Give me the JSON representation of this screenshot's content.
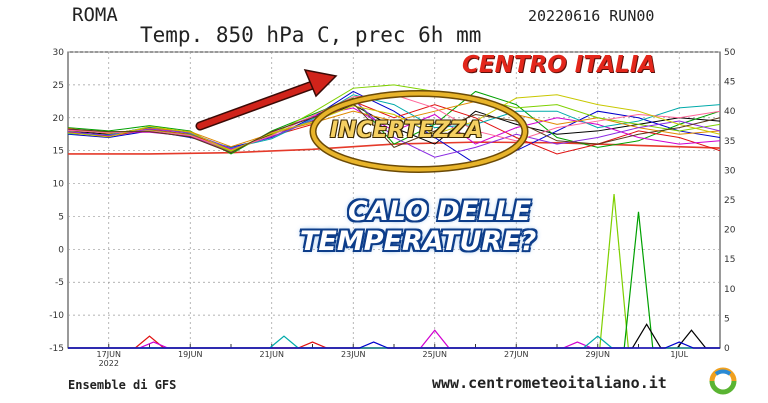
{
  "header": {
    "city": "ROMA",
    "run_code": "20220616 RUN00",
    "subtitle": "Temp. 850 hPa C, prec 6h mm"
  },
  "overlay": {
    "region": "CENTRO ITALIA",
    "uncertainty": "INCERTEZZA",
    "question_line1": "CALO DELLE",
    "question_line2": "TEMPERATURE?"
  },
  "footer": {
    "source": "Ensemble di GFS",
    "website": "www.centrometeoitaliano.it",
    "logo": "MC"
  },
  "colors": {
    "red_accent": "#e3261b",
    "arrow": "#d0231a",
    "ellipse": "#d9a41f",
    "text_blue": "#0d3d8a"
  },
  "chart_data": {
    "type": "line",
    "title": "Temp. 850 hPa C, prec 6h mm",
    "x_ticks": [
      {
        "label": "17JUN",
        "sub": "2022",
        "day": 1
      },
      {
        "label": "19JUN",
        "day": 3
      },
      {
        "label": "21JUN",
        "day": 5
      },
      {
        "label": "23JUN",
        "day": 7
      },
      {
        "label": "25JUN",
        "day": 9
      },
      {
        "label": "27JUN",
        "day": 11
      },
      {
        "label": "29JUN",
        "day": 13
      },
      {
        "label": "1JUL",
        "day": 15
      }
    ],
    "x_range_days": [
      0,
      16
    ],
    "y_left": {
      "ticks": [
        30,
        25,
        20,
        15,
        10,
        5,
        0,
        -5,
        -10,
        -15
      ],
      "range": [
        -15,
        30
      ]
    },
    "y_right": {
      "ticks": [
        50,
        45,
        40,
        35,
        30,
        25,
        20,
        15,
        10,
        5,
        0
      ],
      "range": [
        0,
        50
      ]
    },
    "climatology": {
      "color": "#e53a2a",
      "x": [
        0,
        2,
        4,
        6,
        8,
        10,
        12,
        14,
        16
      ],
      "y": [
        14.5,
        14.5,
        14.7,
        15.2,
        16.0,
        16.3,
        16.2,
        15.8,
        15.4
      ]
    },
    "temperature_members": [
      {
        "color": "#000000",
        "y": [
          18.0,
          17.5,
          18.5,
          17.8,
          15.0,
          17.5,
          19.5,
          22.0,
          18.5,
          16.0,
          21.0,
          19.0,
          17.5,
          18.0,
          19.0,
          20.0,
          19.5
        ]
      },
      {
        "color": "#0000cc",
        "y": [
          17.5,
          17.0,
          18.0,
          17.0,
          15.5,
          17.0,
          20.0,
          24.0,
          21.0,
          17.0,
          13.0,
          15.0,
          18.0,
          21.0,
          20.0,
          18.0,
          17.0
        ]
      },
      {
        "color": "#00a000",
        "y": [
          18.5,
          18.0,
          18.8,
          18.0,
          14.5,
          18.0,
          20.5,
          23.0,
          16.0,
          19.0,
          24.0,
          22.0,
          17.0,
          15.5,
          16.5,
          19.0,
          21.0
        ]
      },
      {
        "color": "#e01010",
        "y": [
          17.8,
          17.2,
          18.2,
          17.5,
          15.2,
          17.2,
          19.0,
          22.5,
          20.0,
          22.0,
          20.0,
          17.0,
          14.5,
          16.0,
          18.0,
          17.0,
          15.0
        ]
      },
      {
        "color": "#d000d0",
        "y": [
          18.2,
          17.8,
          17.8,
          17.2,
          14.8,
          17.8,
          20.2,
          21.5,
          18.0,
          20.5,
          16.0,
          18.5,
          20.0,
          19.0,
          17.0,
          16.0,
          16.5
        ]
      },
      {
        "color": "#00aaaa",
        "y": [
          17.6,
          17.4,
          18.6,
          17.6,
          15.4,
          16.8,
          19.8,
          23.5,
          22.0,
          18.5,
          19.0,
          21.0,
          21.0,
          18.5,
          19.5,
          21.5,
          22.0
        ]
      },
      {
        "color": "#e08a00",
        "y": [
          18.4,
          17.6,
          18.4,
          17.9,
          15.6,
          17.6,
          19.2,
          21.0,
          19.5,
          21.0,
          22.5,
          20.5,
          19.0,
          20.0,
          18.5,
          17.5,
          18.0
        ]
      },
      {
        "color": "#7fd000",
        "y": [
          18.0,
          17.8,
          18.1,
          17.4,
          14.9,
          17.4,
          20.8,
          24.5,
          25.0,
          24.0,
          23.0,
          21.5,
          22.0,
          20.0,
          19.0,
          18.0,
          19.0
        ]
      },
      {
        "color": "#8a2be2",
        "y": [
          17.9,
          17.3,
          18.3,
          17.7,
          15.3,
          17.1,
          19.6,
          22.8,
          17.0,
          14.0,
          15.5,
          17.5,
          16.0,
          17.0,
          18.5,
          19.5,
          18.0
        ]
      },
      {
        "color": "#ff6699",
        "y": [
          18.1,
          17.7,
          18.0,
          17.3,
          15.1,
          17.3,
          20.3,
          23.2,
          23.5,
          21.5,
          18.0,
          16.5,
          18.5,
          19.5,
          20.5,
          20.0,
          21.0
        ]
      },
      {
        "color": "#c8c800",
        "y": [
          17.7,
          17.1,
          18.7,
          17.8,
          15.0,
          17.7,
          19.4,
          21.8,
          20.5,
          17.5,
          19.5,
          23.0,
          23.5,
          22.0,
          21.0,
          19.0,
          17.5
        ]
      },
      {
        "color": "#5a3a1a",
        "y": [
          18.3,
          17.9,
          17.9,
          17.1,
          14.7,
          17.9,
          20.0,
          22.2,
          15.5,
          18.0,
          20.5,
          19.5,
          16.5,
          16.0,
          17.5,
          18.5,
          20.0
        ]
      }
    ],
    "precip_members": [
      {
        "color": "#7fd000",
        "peaks": [
          {
            "day": 13.4,
            "value": 26
          }
        ]
      },
      {
        "color": "#00a000",
        "peaks": [
          {
            "day": 14.0,
            "value": 23
          }
        ]
      },
      {
        "color": "#000000",
        "peaks": [
          {
            "day": 14.2,
            "value": 4
          },
          {
            "day": 15.3,
            "value": 3
          }
        ]
      },
      {
        "color": "#e01010",
        "peaks": [
          {
            "day": 2.0,
            "value": 2
          },
          {
            "day": 6.0,
            "value": 1
          }
        ]
      },
      {
        "color": "#d000d0",
        "peaks": [
          {
            "day": 2.1,
            "value": 1
          },
          {
            "day": 9.0,
            "value": 3
          },
          {
            "day": 12.5,
            "value": 1
          }
        ]
      },
      {
        "color": "#00aaaa",
        "peaks": [
          {
            "day": 5.3,
            "value": 2
          },
          {
            "day": 13.0,
            "value": 2
          }
        ]
      },
      {
        "color": "#0000cc",
        "peaks": [
          {
            "day": 7.5,
            "value": 1
          },
          {
            "day": 15.0,
            "value": 1
          }
        ]
      }
    ]
  }
}
